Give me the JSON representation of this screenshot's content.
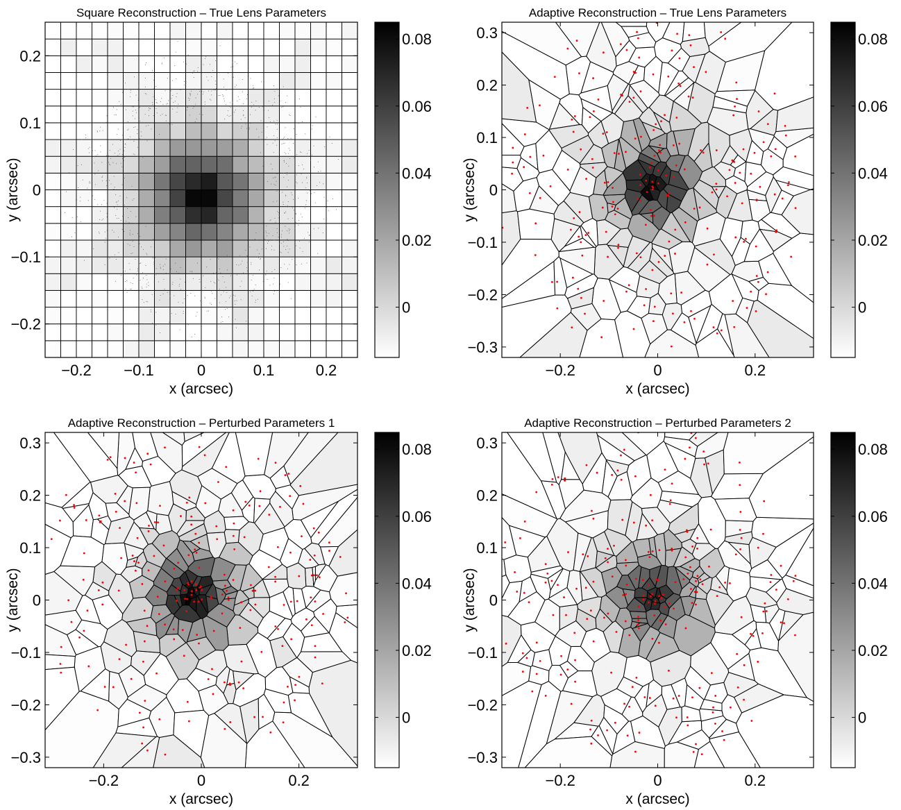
{
  "chart_data": [
    {
      "type": "heatmap",
      "title": "Square Reconstruction – True Lens Parameters",
      "xlabel": "x (arcsec)",
      "ylabel": "y (arcsec)",
      "xlim": [
        -0.25,
        0.25
      ],
      "ylim": [
        -0.25,
        0.25
      ],
      "xticks": [
        -0.2,
        -0.1,
        0,
        0.1,
        0.2
      ],
      "yticks": [
        -0.2,
        -0.1,
        0,
        0.1,
        0.2
      ],
      "xtick_labels": [
        "−0.2",
        "−0.1",
        "0",
        "0.1",
        "0.2"
      ],
      "ytick_labels": [
        "−0.2",
        "−0.1",
        "0",
        "0.1",
        "0.2"
      ],
      "grid": "square 20x20 pixel grid",
      "colormap": "gray (white low, black high)",
      "colorbar": {
        "range": [
          -0.015,
          0.085
        ],
        "ticks": [
          0,
          0.02,
          0.04,
          0.06,
          0.08
        ],
        "tick_labels": [
          "0",
          "0.02",
          "0.04",
          "0.06",
          "0.08"
        ]
      },
      "peak": {
        "x": 0,
        "y": -0.01,
        "value": 0.082
      }
    },
    {
      "type": "heatmap",
      "title": "Adaptive Reconstruction – True Lens Parameters",
      "xlabel": "x (arcsec)",
      "ylabel": "y (arcsec)",
      "xlim": [
        -0.32,
        0.32
      ],
      "ylim": [
        -0.32,
        0.32
      ],
      "xticks": [
        -0.2,
        0,
        0.2
      ],
      "yticks": [
        -0.3,
        -0.2,
        -0.1,
        0,
        0.1,
        0.2,
        0.3
      ],
      "xtick_labels": [
        "−0.2",
        "0",
        "0.2"
      ],
      "ytick_labels": [
        "−0.3",
        "−0.2",
        "−0.1",
        "0",
        "0.1",
        "0.2",
        "0.3"
      ],
      "grid": "adaptive Voronoi tessellation with red source points",
      "colormap": "gray (white low, black high)",
      "colorbar": {
        "range": [
          -0.015,
          0.085
        ],
        "ticks": [
          0,
          0.02,
          0.04,
          0.06,
          0.08
        ],
        "tick_labels": [
          "0",
          "0.02",
          "0.04",
          "0.06",
          "0.08"
        ]
      },
      "peak": {
        "x": -0.01,
        "y": 0.01,
        "value": 0.08
      }
    },
    {
      "type": "heatmap",
      "title": "Adaptive Reconstruction – Perturbed Parameters 1",
      "xlabel": "x (arcsec)",
      "ylabel": "y (arcsec)",
      "xlim": [
        -0.32,
        0.32
      ],
      "ylim": [
        -0.32,
        0.32
      ],
      "xticks": [
        -0.2,
        0,
        0.2
      ],
      "yticks": [
        -0.3,
        -0.2,
        -0.1,
        0,
        0.1,
        0.2,
        0.3
      ],
      "xtick_labels": [
        "−0.2",
        "0",
        "0.2"
      ],
      "ytick_labels": [
        "−0.3",
        "−0.2",
        "−0.1",
        "0",
        "0.1",
        "0.2",
        "0.3"
      ],
      "grid": "adaptive Voronoi tessellation with red source points",
      "colormap": "gray (white low, black high)",
      "colorbar": {
        "range": [
          -0.015,
          0.085
        ],
        "ticks": [
          0,
          0.02,
          0.04,
          0.06,
          0.08
        ],
        "tick_labels": [
          "0",
          "0.02",
          "0.04",
          "0.06",
          "0.08"
        ]
      },
      "peak": {
        "x": -0.02,
        "y": 0.01,
        "value": 0.08
      }
    },
    {
      "type": "heatmap",
      "title": "Adaptive Reconstruction – Perturbed Parameters 2",
      "xlabel": "x (arcsec)",
      "ylabel": "y (arcsec)",
      "xlim": [
        -0.32,
        0.32
      ],
      "ylim": [
        -0.32,
        0.32
      ],
      "xticks": [
        -0.2,
        0,
        0.2
      ],
      "yticks": [
        -0.3,
        -0.2,
        -0.1,
        0,
        0.1,
        0.2,
        0.3
      ],
      "xtick_labels": [
        "−0.2",
        "0",
        "0.2"
      ],
      "ytick_labels": [
        "−0.3",
        "−0.2",
        "−0.1",
        "0",
        "0.1",
        "0.2",
        "0.3"
      ],
      "grid": "adaptive Voronoi tessellation with red source points",
      "colormap": "gray (white low, black high)",
      "colorbar": {
        "range": [
          -0.015,
          0.085
        ],
        "ticks": [
          0,
          0.02,
          0.04,
          0.06,
          0.08
        ],
        "tick_labels": [
          "0",
          "0.02",
          "0.04",
          "0.06",
          "0.08"
        ]
      },
      "peak": {
        "x": -0.01,
        "y": 0.01,
        "value": 0.07
      }
    }
  ]
}
